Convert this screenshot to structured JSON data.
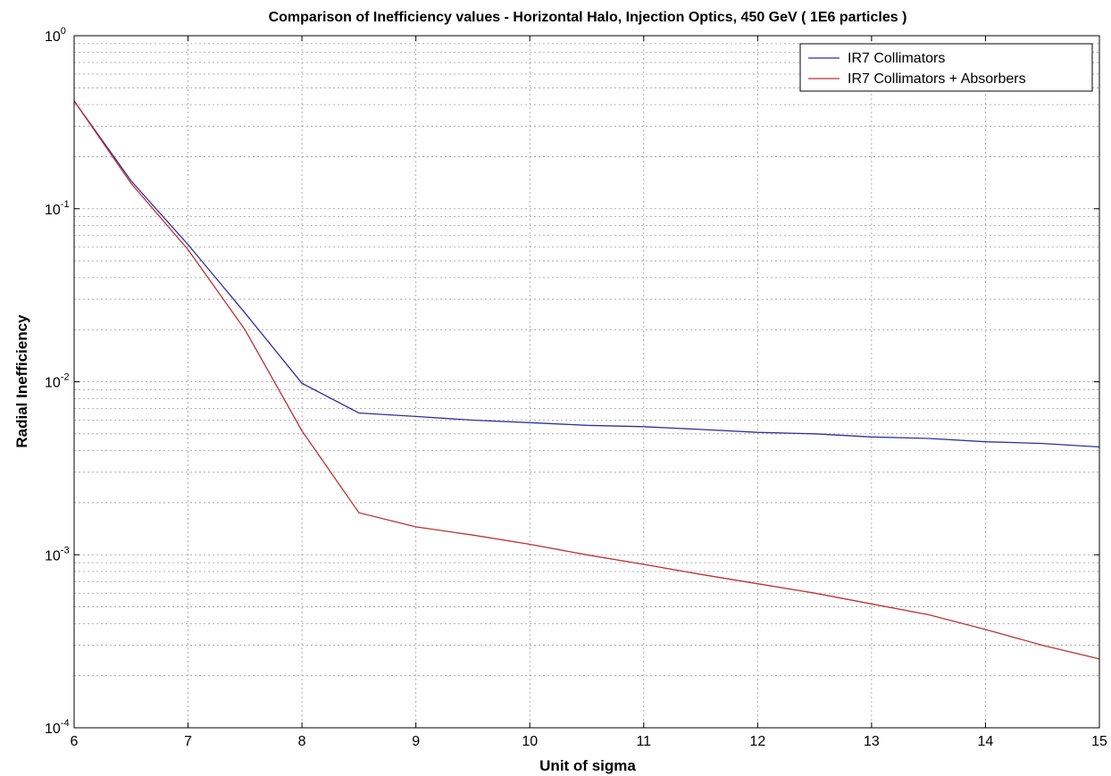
{
  "chart_data": {
    "type": "line",
    "title": "Comparison of Inefficiency values - Horizontal Halo, Injection Optics, 450 GeV ( 1E6 particles )",
    "xlabel": "Unit of sigma",
    "ylabel": "Radial Inefficiency",
    "xlim": [
      6,
      15
    ],
    "ylim": [
      0.0001,
      1
    ],
    "yscale": "log",
    "grid": true,
    "legend_position": "top-right",
    "x_ticks": [
      "6",
      "7",
      "8",
      "9",
      "10",
      "11",
      "12",
      "13",
      "14",
      "15"
    ],
    "y_ticks": [
      {
        "base": "10",
        "exp": "-4"
      },
      {
        "base": "10",
        "exp": "-3"
      },
      {
        "base": "10",
        "exp": "-2"
      },
      {
        "base": "10",
        "exp": "-1"
      },
      {
        "base": "10",
        "exp": "0"
      }
    ],
    "series": [
      {
        "name": "IR7 Collimators",
        "color": "#2f2f9f",
        "x": [
          6,
          6.5,
          7,
          7.5,
          8,
          8.5,
          9,
          9.5,
          10,
          10.5,
          11,
          11.5,
          12,
          12.5,
          13,
          13.5,
          14,
          14.5,
          15
        ],
        "y": [
          0.42,
          0.145,
          0.062,
          0.025,
          0.0098,
          0.0066,
          0.0063,
          0.006,
          0.0058,
          0.0056,
          0.0055,
          0.0053,
          0.0051,
          0.005,
          0.0048,
          0.0047,
          0.0045,
          0.0044,
          0.0042
        ]
      },
      {
        "name": "IR7 Collimators + Absorbers",
        "color": "#c03030",
        "x": [
          6,
          6.5,
          7,
          7.5,
          8,
          8.5,
          9,
          9.5,
          10,
          10.5,
          11,
          11.5,
          12,
          12.5,
          13,
          13.5,
          14,
          14.5,
          15
        ],
        "y": [
          0.42,
          0.14,
          0.058,
          0.02,
          0.0052,
          0.00175,
          0.00145,
          0.0013,
          0.00115,
          0.001,
          0.00088,
          0.00077,
          0.00068,
          0.0006,
          0.00052,
          0.00045,
          0.00037,
          0.0003,
          0.00025
        ]
      }
    ]
  }
}
